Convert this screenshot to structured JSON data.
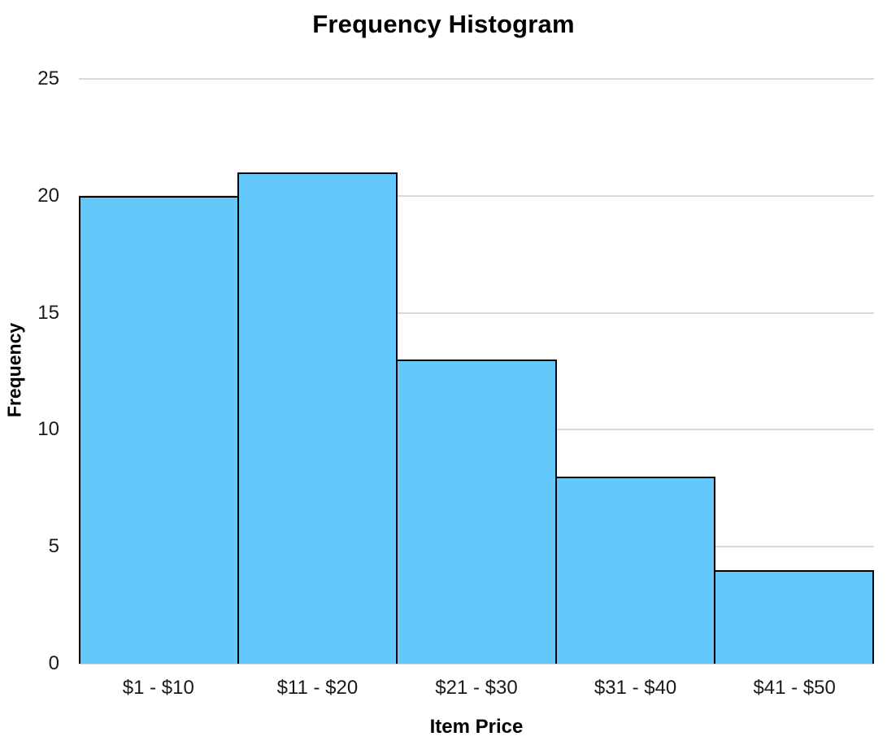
{
  "chart_data": {
    "type": "bar",
    "title": "Frequency Histogram",
    "xlabel": "Item Price",
    "ylabel": "Frequency",
    "categories": [
      "$1 - $10",
      "$11 - $20",
      "$21 - $30",
      "$31 - $40",
      "$41 - $50"
    ],
    "values": [
      20,
      21,
      13,
      8,
      4
    ],
    "ylim": [
      0,
      25
    ],
    "yticks": [
      0,
      5,
      10,
      15,
      20,
      25
    ],
    "grid": "horizontal",
    "legend": "none",
    "colors": {
      "bar_fill": "#64C8FA",
      "bar_border": "#000000",
      "gridline": "#D9D9D9",
      "title_text": "#000000",
      "tick_text": "#1A1A1A",
      "background": "#FFFFFF"
    }
  }
}
